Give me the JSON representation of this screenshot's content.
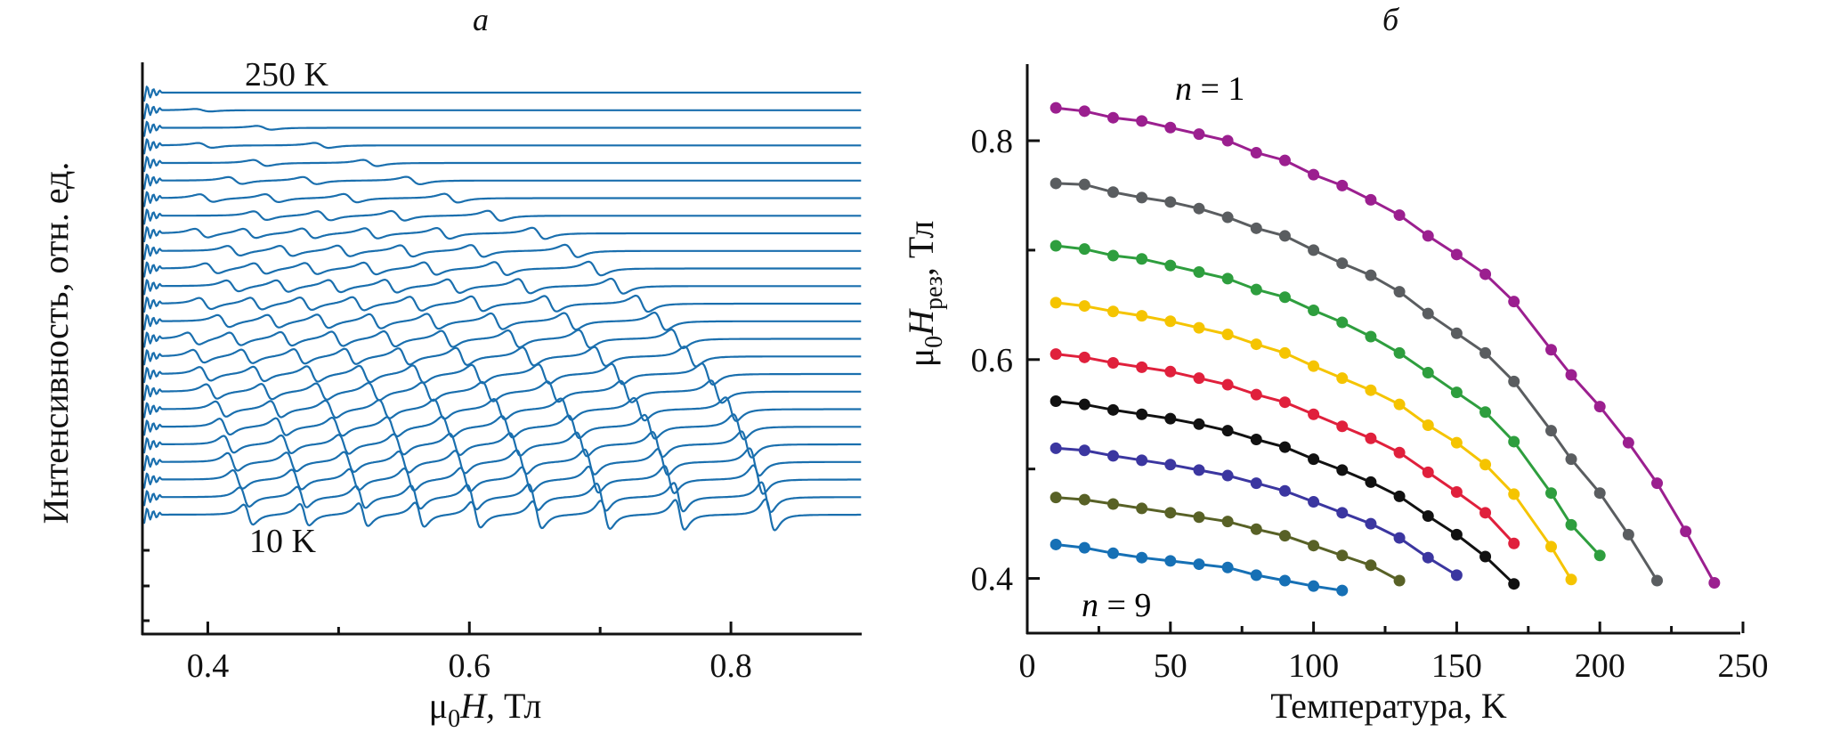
{
  "figure": {
    "panels": [
      "a",
      "b"
    ]
  },
  "chart_data": [
    {
      "id": "a",
      "type": "line",
      "panel_letter": "а",
      "title": "",
      "xlabel_prefix": "μ",
      "xlabel_sub": "0",
      "xlabel_var": "H,",
      "xlabel_unit": " Тл",
      "ylabel": "Интенсивность, отн. ед.",
      "xlim": [
        0.35,
        0.9
      ],
      "xticks": [
        0.4,
        0.6,
        0.8
      ],
      "xtick_labels": [
        "0.4",
        "0.6",
        "0.8"
      ],
      "xminor_ticks": [
        0.5,
        0.7
      ],
      "yticks_visible_labels": false,
      "annotations": [
        {
          "text": "250 K",
          "position": "top-left, above top trace"
        },
        {
          "text": "10 K",
          "position": "below bottom trace"
        }
      ],
      "trace_color": "#1a6fae",
      "description": "Stacked (vertically offset) resonance spectra, one per temperature from 250 K (top) to 10 K (bottom) in 10 K steps; each trace shows derivative-shaped resonance lines at the fields plotted in panel б.",
      "temperatures_K": [
        250,
        240,
        230,
        220,
        210,
        200,
        190,
        180,
        170,
        160,
        150,
        140,
        130,
        120,
        110,
        100,
        90,
        80,
        70,
        60,
        50,
        40,
        30,
        20,
        10
      ]
    },
    {
      "id": "b",
      "type": "line",
      "panel_letter": "б",
      "title": "",
      "xlabel": "Температура, K",
      "ylabel_prefix": "μ",
      "ylabel_sub0": "0",
      "ylabel_var": "H",
      "ylabel_sub": "рез",
      "ylabel_unit": ", Тл",
      "xlim": [
        0,
        250
      ],
      "ylim": [
        0.35,
        0.87
      ],
      "xticks": [
        0,
        50,
        100,
        150,
        200,
        250
      ],
      "xtick_labels": [
        "0",
        "50",
        "100",
        "150",
        "200",
        "250"
      ],
      "xminor_ticks": [
        25,
        75,
        125,
        175,
        225
      ],
      "yticks": [
        0.4,
        0.6,
        0.8
      ],
      "ytick_labels": [
        "0.4",
        "0.6",
        "0.8"
      ],
      "yminor_ticks": [
        0.5,
        0.7
      ],
      "markers": "filled circles",
      "annotations": [
        {
          "text_italic": "n",
          "text": " = 1",
          "color": "#9b1f8f",
          "position": "above top series"
        },
        {
          "text_italic": "n",
          "text": " = 9",
          "color": "#1670b5",
          "position": "below bottom series"
        }
      ],
      "series": [
        {
          "name": "n=1",
          "color": "#9b1f8f",
          "x": [
            10,
            20,
            30,
            40,
            50,
            60,
            70,
            80,
            90,
            100,
            110,
            120,
            130,
            140,
            150,
            160,
            170,
            183,
            190,
            200,
            210,
            220,
            230,
            240
          ],
          "y": [
            0.83,
            0.827,
            0.821,
            0.818,
            0.812,
            0.806,
            0.8,
            0.789,
            0.782,
            0.769,
            0.759,
            0.746,
            0.732,
            0.713,
            0.696,
            0.678,
            0.653,
            0.609,
            0.586,
            0.557,
            0.524,
            0.487,
            0.443,
            0.396
          ]
        },
        {
          "name": "n=2",
          "color": "#5a5d60",
          "x": [
            10,
            20,
            30,
            40,
            50,
            60,
            70,
            80,
            90,
            100,
            110,
            120,
            130,
            140,
            150,
            160,
            170,
            183,
            190,
            200,
            210,
            220
          ],
          "y": [
            0.761,
            0.76,
            0.753,
            0.748,
            0.744,
            0.738,
            0.73,
            0.72,
            0.713,
            0.7,
            0.688,
            0.677,
            0.662,
            0.642,
            0.624,
            0.606,
            0.58,
            0.535,
            0.509,
            0.478,
            0.44,
            0.398
          ]
        },
        {
          "name": "n=3",
          "color": "#2e9e3e",
          "x": [
            10,
            20,
            30,
            40,
            50,
            60,
            70,
            80,
            90,
            100,
            110,
            120,
            130,
            140,
            150,
            160,
            170,
            183,
            190,
            200
          ],
          "y": [
            0.704,
            0.701,
            0.695,
            0.692,
            0.686,
            0.68,
            0.674,
            0.664,
            0.657,
            0.645,
            0.634,
            0.621,
            0.606,
            0.588,
            0.57,
            0.552,
            0.525,
            0.478,
            0.449,
            0.421
          ]
        },
        {
          "name": "n=4",
          "color": "#f5c400",
          "x": [
            10,
            20,
            30,
            40,
            50,
            60,
            70,
            80,
            90,
            100,
            110,
            120,
            130,
            140,
            150,
            160,
            170,
            183,
            190
          ],
          "y": [
            0.652,
            0.649,
            0.644,
            0.64,
            0.635,
            0.629,
            0.623,
            0.614,
            0.606,
            0.594,
            0.583,
            0.572,
            0.559,
            0.54,
            0.524,
            0.504,
            0.477,
            0.429,
            0.399
          ]
        },
        {
          "name": "n=5",
          "color": "#e0203c",
          "x": [
            10,
            20,
            30,
            40,
            50,
            60,
            70,
            80,
            90,
            100,
            110,
            120,
            130,
            140,
            150,
            160,
            170
          ],
          "y": [
            0.605,
            0.602,
            0.597,
            0.593,
            0.589,
            0.583,
            0.577,
            0.568,
            0.561,
            0.55,
            0.539,
            0.528,
            0.515,
            0.497,
            0.479,
            0.46,
            0.432
          ]
        },
        {
          "name": "n=6",
          "color": "#111111",
          "x": [
            10,
            20,
            30,
            40,
            50,
            60,
            70,
            80,
            90,
            100,
            110,
            120,
            130,
            140,
            150,
            160,
            170
          ],
          "y": [
            0.562,
            0.559,
            0.554,
            0.55,
            0.546,
            0.541,
            0.535,
            0.527,
            0.52,
            0.509,
            0.499,
            0.488,
            0.475,
            0.457,
            0.44,
            0.42,
            0.395
          ]
        },
        {
          "name": "n=7",
          "color": "#3b36a0",
          "x": [
            10,
            20,
            30,
            40,
            50,
            60,
            70,
            80,
            90,
            100,
            110,
            120,
            130,
            140,
            150
          ],
          "y": [
            0.519,
            0.517,
            0.512,
            0.508,
            0.504,
            0.499,
            0.494,
            0.487,
            0.48,
            0.47,
            0.46,
            0.45,
            0.437,
            0.419,
            0.403
          ]
        },
        {
          "name": "n=8",
          "color": "#586126",
          "x": [
            10,
            20,
            30,
            40,
            50,
            60,
            70,
            80,
            90,
            100,
            110,
            120,
            130
          ],
          "y": [
            0.474,
            0.472,
            0.468,
            0.464,
            0.46,
            0.456,
            0.452,
            0.445,
            0.439,
            0.43,
            0.421,
            0.412,
            0.398
          ]
        },
        {
          "name": "n=9",
          "color": "#1670b5",
          "x": [
            10,
            20,
            30,
            40,
            50,
            60,
            70,
            80,
            90,
            100,
            110
          ],
          "y": [
            0.431,
            0.428,
            0.423,
            0.419,
            0.416,
            0.413,
            0.41,
            0.403,
            0.398,
            0.393,
            0.389
          ]
        }
      ]
    }
  ]
}
